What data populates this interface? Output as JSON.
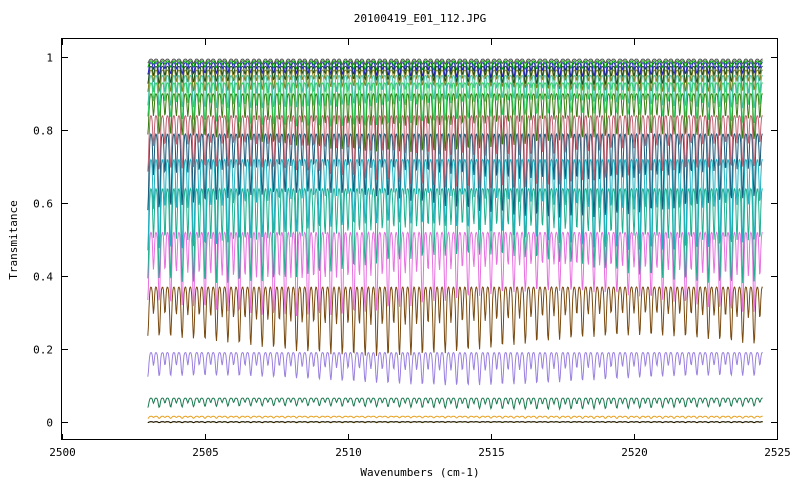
{
  "chart_data": {
    "type": "line",
    "title": "20100419_E01_112.JPG",
    "xlabel": "Wavenumbers (cm-1)",
    "ylabel": "Transmitance",
    "xlim": [
      2500,
      2525
    ],
    "ylim": [
      -0.05,
      1.05
    ],
    "xticks": [
      2500,
      2505,
      2510,
      2515,
      2520,
      2525
    ],
    "yticks": [
      0,
      0.2,
      0.4,
      0.6,
      0.8,
      1
    ],
    "yticklabels": [
      "0",
      "0.2",
      "0.4",
      "0.6",
      "0.8",
      "1"
    ],
    "grid": false,
    "x_range": [
      2503,
      2524.5
    ],
    "line_spacing_cm1": 0.4,
    "series": [
      {
        "color": "#c8a000",
        "baseline": 0.0,
        "depth": 0.003
      },
      {
        "color": "#000000",
        "baseline": 0.0,
        "depth": 0.002
      },
      {
        "color": "#e8a020",
        "baseline": 0.015,
        "depth": 0.006
      },
      {
        "color": "#1a7a50",
        "baseline": 0.065,
        "depth": 0.03
      },
      {
        "color": "#9a80e0",
        "baseline": 0.19,
        "depth": 0.09
      },
      {
        "color": "#7a4a10",
        "baseline": 0.37,
        "depth": 0.19
      },
      {
        "color": "#e870e0",
        "baseline": 0.52,
        "depth": 0.23
      },
      {
        "color": "#20b090",
        "baseline": 0.64,
        "depth": 0.26
      },
      {
        "color": "#20b0c0",
        "baseline": 0.72,
        "depth": 0.25
      },
      {
        "color": "#1a5a7a",
        "baseline": 0.79,
        "depth": 0.23
      },
      {
        "color": "#c06070",
        "baseline": 0.84,
        "depth": 0.2
      },
      {
        "color": "#3a7a10",
        "baseline": 0.9,
        "depth": 0.16
      },
      {
        "color": "#30d060",
        "baseline": 0.93,
        "depth": 0.12
      },
      {
        "color": "#40c0a0",
        "baseline": 0.95,
        "depth": 0.09
      },
      {
        "color": "#808020",
        "baseline": 0.965,
        "depth": 0.06
      },
      {
        "color": "#205020",
        "baseline": 0.975,
        "depth": 0.05
      },
      {
        "color": "#2020c0",
        "baseline": 0.985,
        "depth": 0.04
      },
      {
        "color": "#00a000",
        "baseline": 0.99,
        "depth": 0.025
      },
      {
        "color": "#505050",
        "baseline": 0.995,
        "depth": 0.015
      }
    ]
  }
}
